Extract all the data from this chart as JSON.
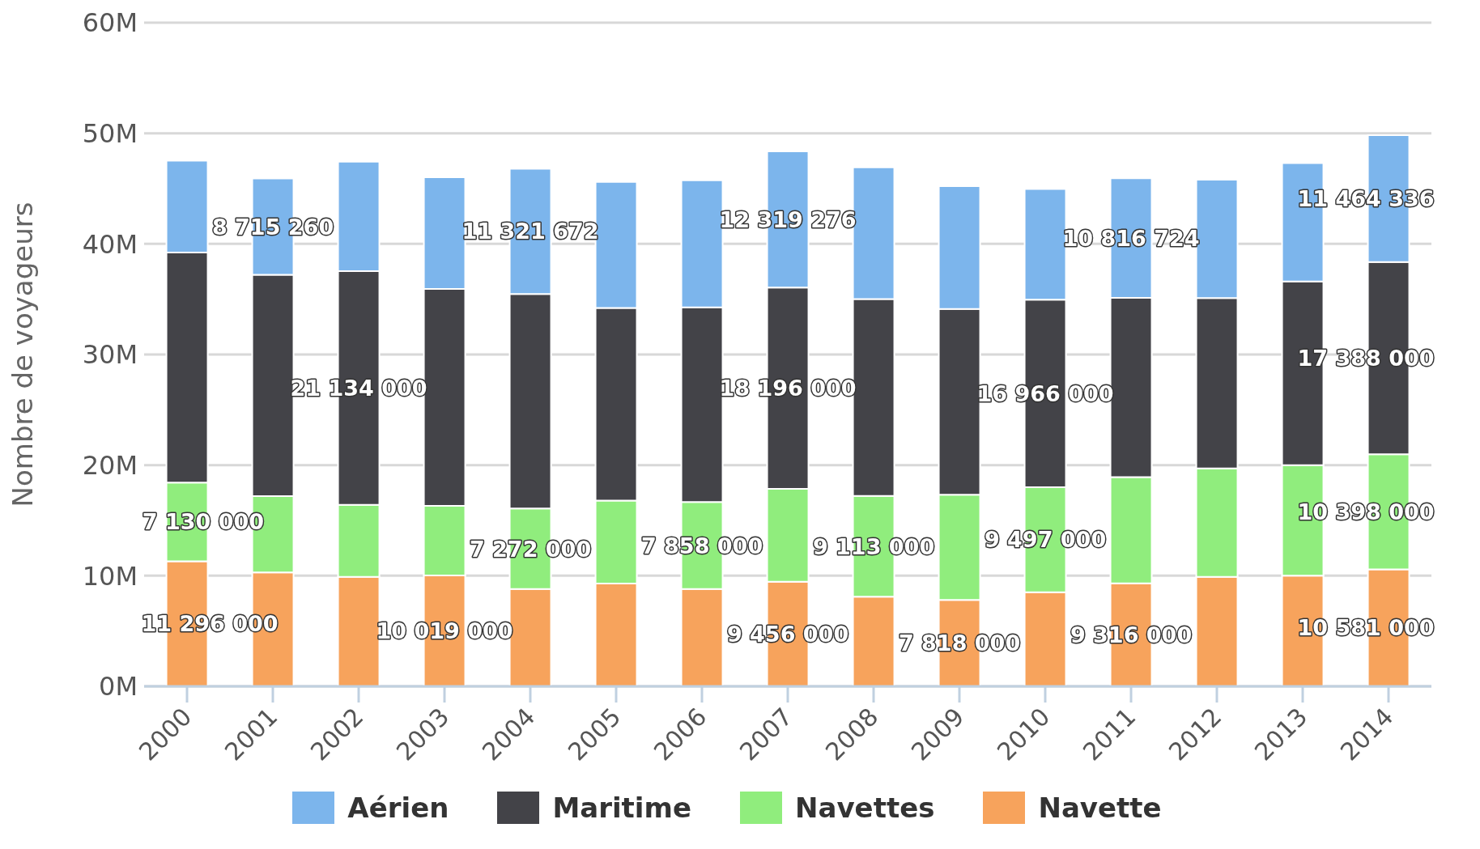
{
  "chart_data": {
    "type": "bar",
    "stacked": true,
    "ylabel": "Nombre de voyageurs",
    "categories": [
      "2000",
      "2001",
      "2002",
      "2003",
      "2004",
      "2005",
      "2006",
      "2007",
      "2008",
      "2009",
      "2010",
      "2011",
      "2012",
      "2013",
      "2014"
    ],
    "series": [
      {
        "name": "Navette",
        "color": "#f7a35c",
        "values": [
          11296000,
          10300000,
          9900000,
          10019000,
          8800000,
          9300000,
          8800000,
          9456000,
          8100000,
          7818000,
          8500000,
          9316000,
          9900000,
          10000000,
          10581000
        ],
        "value_labels": [
          "11 296 000",
          null,
          null,
          "10 019 000",
          null,
          null,
          null,
          "9 456 000",
          null,
          "7 818 000",
          null,
          "9 316 000",
          null,
          null,
          "10 581 000"
        ]
      },
      {
        "name": "Navettes",
        "color": "#90ed7d",
        "values": [
          7130000,
          6900000,
          6500000,
          6300000,
          7272000,
          7500000,
          7858000,
          8400000,
          9113000,
          9500000,
          9497000,
          9600000,
          9800000,
          10000000,
          10398000
        ],
        "value_labels": [
          "7 130 000",
          null,
          null,
          null,
          "7 272 000",
          null,
          "7 858 000",
          null,
          "9 113 000",
          null,
          "9 497 000",
          null,
          null,
          null,
          "10 398 000"
        ]
      },
      {
        "name": "Maritime",
        "color": "#434348",
        "values": [
          20800000,
          20000000,
          21134000,
          19600000,
          19400000,
          17400000,
          17600000,
          18196000,
          17800000,
          16800000,
          16966000,
          16200000,
          15400000,
          16600000,
          17388000
        ],
        "value_labels": [
          null,
          null,
          "21 134 000",
          null,
          null,
          null,
          null,
          "18 196 000",
          null,
          null,
          "16 966 000",
          null,
          null,
          null,
          "17 388 000"
        ]
      },
      {
        "name": "Aérien",
        "color": "#7cb5ec",
        "values": [
          8300000,
          8715260,
          9900000,
          10100000,
          11321672,
          11400000,
          11500000,
          12319276,
          11900000,
          11100000,
          10000000,
          10816724,
          10700000,
          10700000,
          11464336
        ],
        "value_labels": [
          null,
          "8 715 260",
          null,
          null,
          "11 321 672",
          null,
          null,
          "12 319 276",
          null,
          null,
          null,
          "10 816 724",
          null,
          null,
          "11 464 336"
        ]
      }
    ],
    "ylim": [
      0,
      60000000
    ],
    "yticks": [
      {
        "value": 0,
        "label": "0M"
      },
      {
        "value": 10000000,
        "label": "10M"
      },
      {
        "value": 20000000,
        "label": "20M"
      },
      {
        "value": 30000000,
        "label": "30M"
      },
      {
        "value": 40000000,
        "label": "40M"
      },
      {
        "value": 50000000,
        "label": "50M"
      },
      {
        "value": 60000000,
        "label": "60M"
      }
    ],
    "grid": "y",
    "legend": "bottom"
  }
}
